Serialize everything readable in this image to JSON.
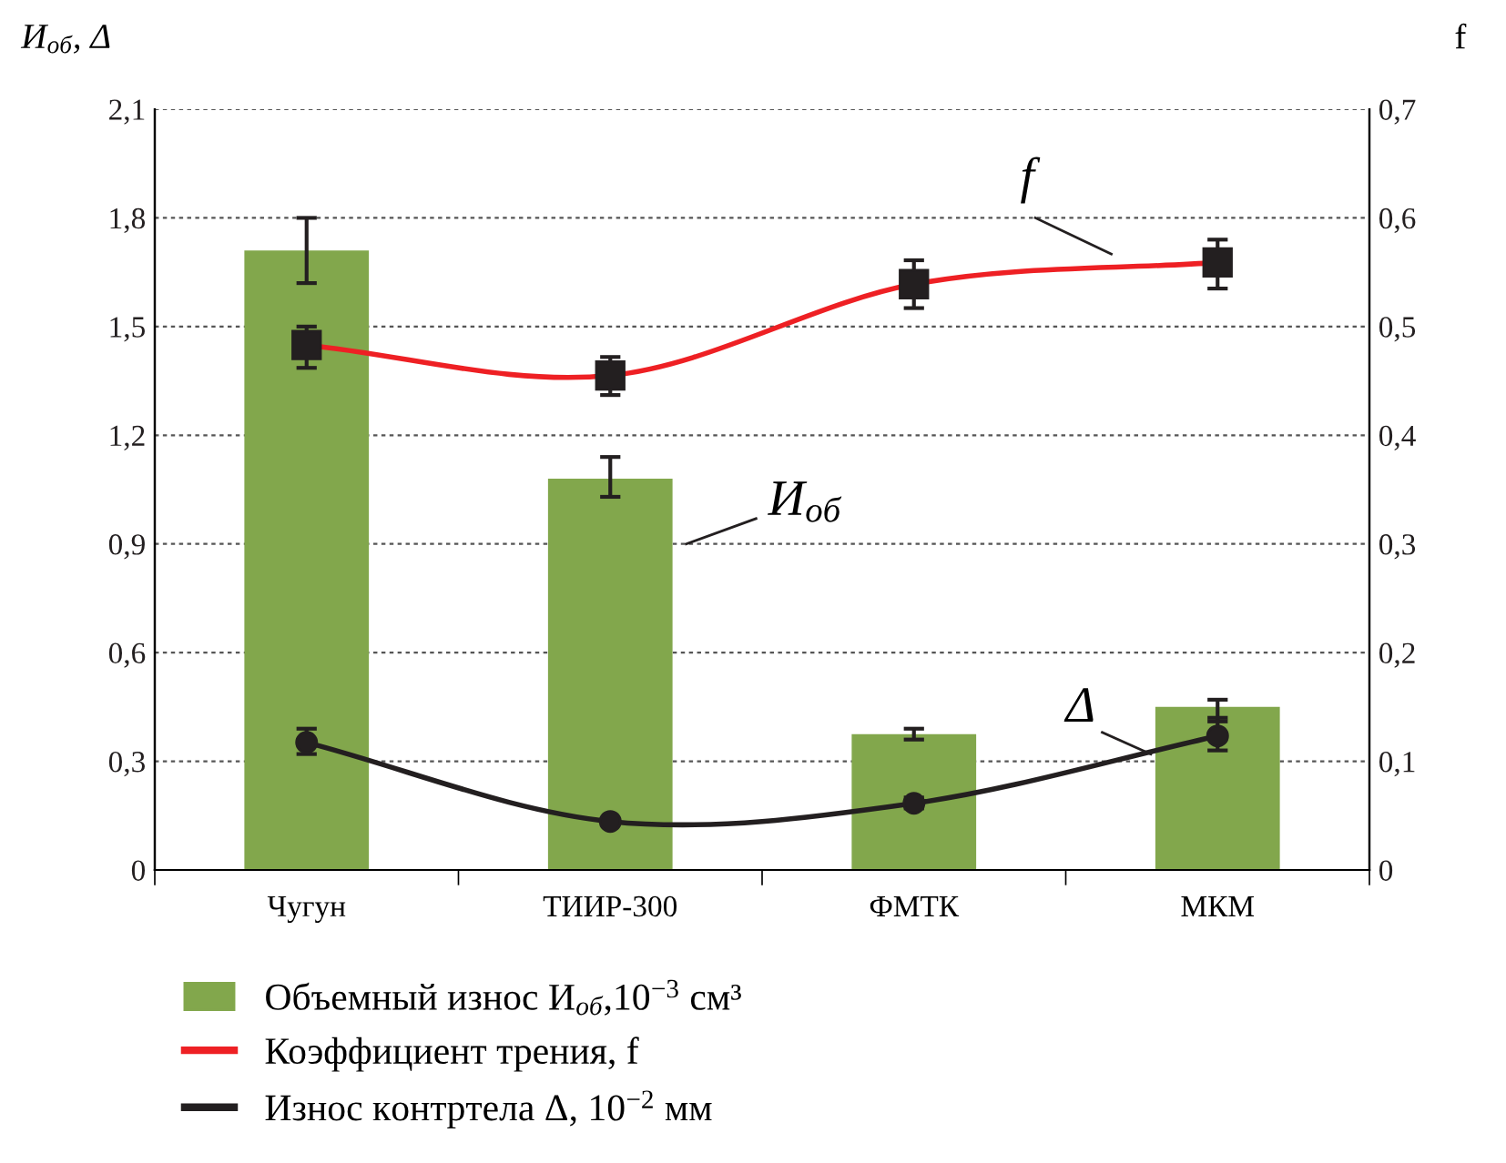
{
  "chart_data": {
    "type": "bar",
    "categories": [
      "Чугун",
      "ТИИР-300",
      "ФМТК",
      "МКМ"
    ],
    "ylabel": "И$_{об}$, Δ",
    "y2label": "f",
    "series": [
      {
        "name": "Объемный износ И$_{об}$,10$^{−3}$ см³",
        "color": "#82a74c",
        "values": [
          1.71,
          1.08,
          0.375,
          0.45
        ],
        "errors": [
          [
            1.62,
            1.8
          ],
          [
            1.03,
            1.14
          ],
          [
            0.36,
            0.39
          ],
          [
            0.41,
            0.47
          ]
        ]
      },
      {
        "name": "Коэффициент трения, f",
        "type": "line",
        "axis": "y2",
        "color": "#ee2024",
        "marker": "square",
        "values": [
          0.483,
          0.455,
          0.539,
          0.559
        ],
        "errors": [
          [
            0.462,
            0.5
          ],
          [
            0.437,
            0.472
          ],
          [
            0.517,
            0.561
          ],
          [
            0.535,
            0.58
          ]
        ]
      },
      {
        "name": "Износ контртела Δ, 10$^{−2}$ мм",
        "type": "line",
        "color": "#231f20",
        "marker": "circle",
        "values": [
          0.352,
          0.134,
          0.184,
          0.37
        ],
        "errors": [
          [
            0.32,
            0.39
          ],
          null,
          [
            0.17,
            0.2
          ],
          [
            0.33,
            0.42
          ]
        ]
      }
    ],
    "ylim": [
      0,
      2.1
    ],
    "yticks": [
      0,
      {
        "value": 0.3,
        "label": "0,3"
      },
      {
        "value": 0.6,
        "label": "0,6"
      },
      {
        "value": 0.9,
        "label": "0,9"
      },
      {
        "value": 1.2,
        "label": "1,2"
      },
      {
        "value": 1.5,
        "label": "1,5"
      },
      {
        "value": 1.8,
        "label": "1,8"
      },
      {
        "value": 2.1,
        "label": "2,1"
      }
    ],
    "y2lim": [
      0,
      0.7
    ],
    "y2ticks": [
      0,
      {
        "value": 0.1,
        "label": "0,1"
      },
      {
        "value": 0.2,
        "label": "0,2"
      },
      {
        "value": 0.3,
        "label": "0,3"
      },
      {
        "value": 0.4,
        "label": "0,4"
      },
      {
        "value": 0.5,
        "label": "0,5"
      },
      {
        "value": 0.6,
        "label": "0,6"
      },
      {
        "value": 0.7,
        "label": "0,7"
      }
    ],
    "annotations": [
      "f",
      "И$_{об}$",
      "Δ"
    ],
    "grid": "y",
    "legend": "bottom",
    "line_style": "solid"
  }
}
